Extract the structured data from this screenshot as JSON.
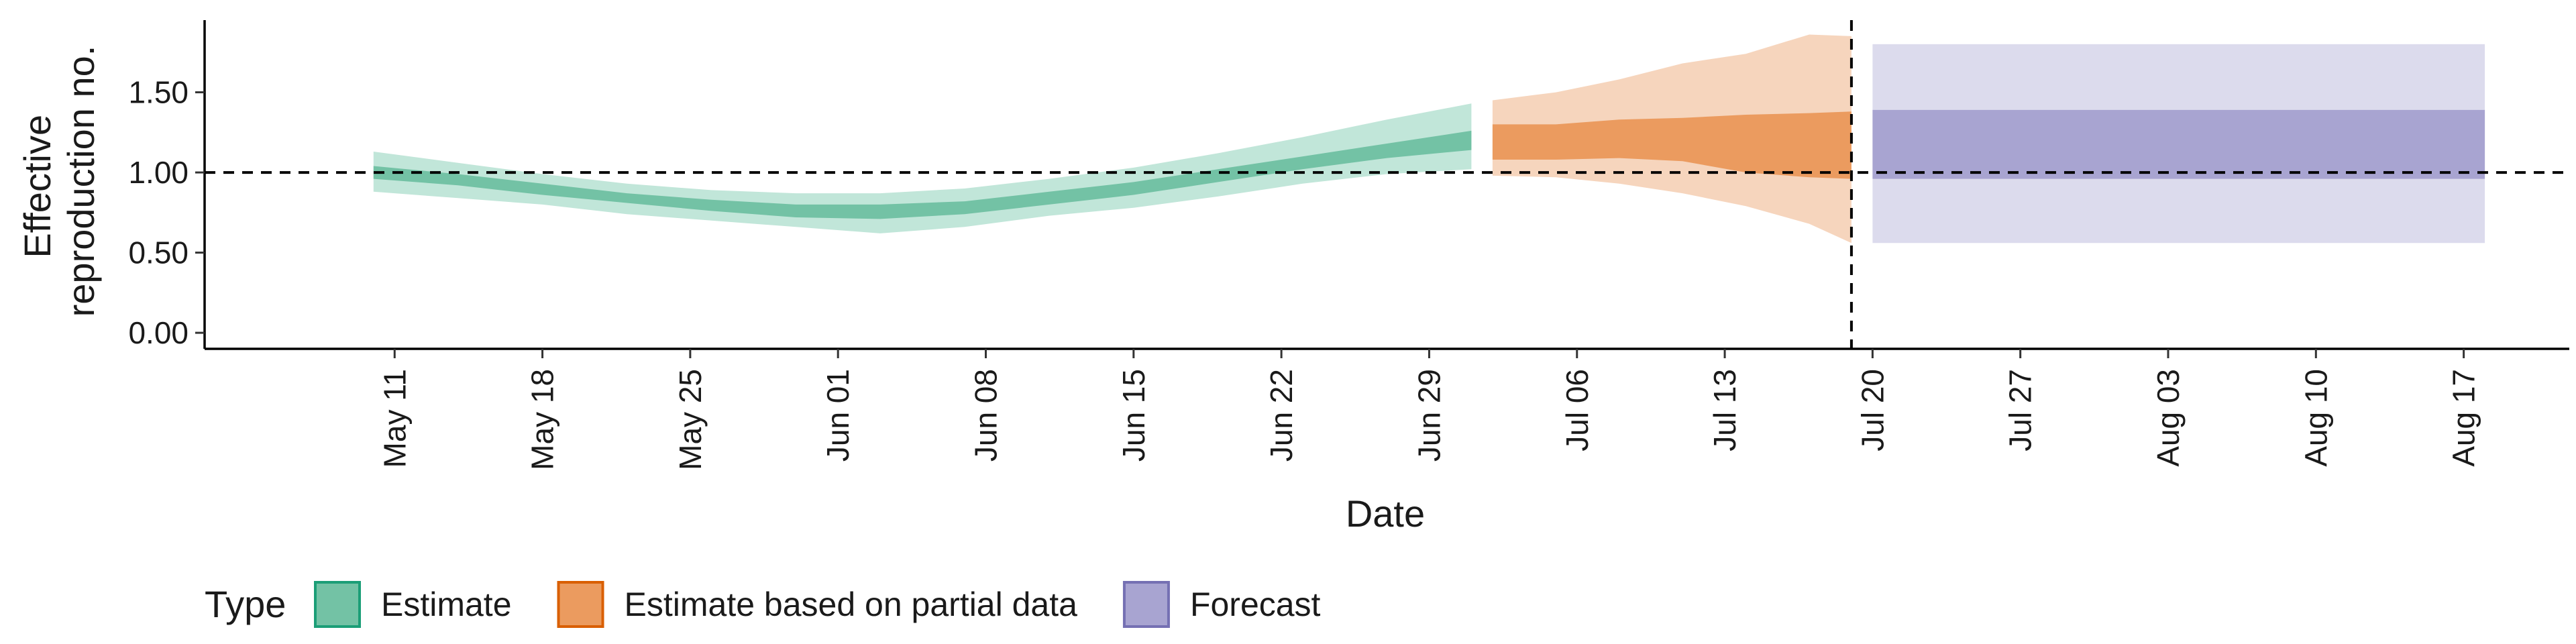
{
  "chart_data": {
    "type": "area",
    "xlabel": "Date",
    "ylabel": [
      "Effective",
      "reproduction no."
    ],
    "x_range": [
      "2021-05-02",
      "2021-08-22"
    ],
    "ylim": [
      -0.1,
      1.95
    ],
    "y_ticks": [
      0.0,
      0.5,
      1.0,
      1.5
    ],
    "y_tick_labels": [
      "0.00",
      "0.50",
      "1.00",
      "1.50"
    ],
    "x_ticks": [
      "2021-05-11",
      "2021-05-18",
      "2021-05-25",
      "2021-06-01",
      "2021-06-08",
      "2021-06-15",
      "2021-06-22",
      "2021-06-29",
      "2021-07-06",
      "2021-07-13",
      "2021-07-20",
      "2021-07-27",
      "2021-08-03",
      "2021-08-10",
      "2021-08-17"
    ],
    "x_tick_labels": [
      "May 11",
      "May 18",
      "May 25",
      "Jun 01",
      "Jun 08",
      "Jun 15",
      "Jun 22",
      "Jun 29",
      "Jul 06",
      "Jul 13",
      "Jul 20",
      "Jul 27",
      "Aug 03",
      "Aug 10",
      "Aug 17"
    ],
    "reference_line_y": 1.0,
    "forecast_start_line": "2021-07-19",
    "grid": false,
    "legend": {
      "title": "Type",
      "position": "bottom-left",
      "items": [
        {
          "label": "Estimate",
          "fill": "#73c2a5",
          "border": "#1b9e77"
        },
        {
          "label": "Estimate based on partial data",
          "fill": "#eb9b5f",
          "border": "#d95f02"
        },
        {
          "label": "Forecast",
          "fill": "#a8a4d1",
          "border": "#7570b3"
        }
      ]
    },
    "series": [
      {
        "name": "Estimate",
        "color_outer": "#c1e6d9",
        "color_inner": "#73c2a5",
        "points": [
          {
            "date": "2021-05-10",
            "lower_90": 0.88,
            "lower_50": 0.96,
            "upper_50": 1.04,
            "upper_90": 1.13
          },
          {
            "date": "2021-05-14",
            "lower_90": 0.84,
            "lower_50": 0.92,
            "upper_50": 0.99,
            "upper_90": 1.06
          },
          {
            "date": "2021-05-18",
            "lower_90": 0.8,
            "lower_50": 0.86,
            "upper_50": 0.93,
            "upper_90": 0.99
          },
          {
            "date": "2021-05-22",
            "lower_90": 0.74,
            "lower_50": 0.81,
            "upper_50": 0.87,
            "upper_90": 0.93
          },
          {
            "date": "2021-05-26",
            "lower_90": 0.7,
            "lower_50": 0.76,
            "upper_50": 0.83,
            "upper_90": 0.89
          },
          {
            "date": "2021-05-30",
            "lower_90": 0.66,
            "lower_50": 0.72,
            "upper_50": 0.8,
            "upper_90": 0.87
          },
          {
            "date": "2021-06-03",
            "lower_90": 0.62,
            "lower_50": 0.71,
            "upper_50": 0.8,
            "upper_90": 0.87
          },
          {
            "date": "2021-06-07",
            "lower_90": 0.66,
            "lower_50": 0.74,
            "upper_50": 0.82,
            "upper_90": 0.9
          },
          {
            "date": "2021-06-11",
            "lower_90": 0.73,
            "lower_50": 0.8,
            "upper_50": 0.88,
            "upper_90": 0.96
          },
          {
            "date": "2021-06-15",
            "lower_90": 0.78,
            "lower_50": 0.86,
            "upper_50": 0.94,
            "upper_90": 1.03
          },
          {
            "date": "2021-06-19",
            "lower_90": 0.85,
            "lower_50": 0.94,
            "upper_50": 1.02,
            "upper_90": 1.12
          },
          {
            "date": "2021-06-23",
            "lower_90": 0.93,
            "lower_50": 1.02,
            "upper_50": 1.1,
            "upper_90": 1.22
          },
          {
            "date": "2021-06-27",
            "lower_90": 0.99,
            "lower_50": 1.09,
            "upper_50": 1.18,
            "upper_90": 1.33
          },
          {
            "date": "2021-07-01",
            "lower_90": 1.02,
            "lower_50": 1.14,
            "upper_50": 1.26,
            "upper_90": 1.43
          }
        ]
      },
      {
        "name": "Estimate based on partial data",
        "color_outer": "#f6d5bd",
        "color_inner": "#eb9b5f",
        "points": [
          {
            "date": "2021-07-02",
            "lower_90": 0.98,
            "lower_50": 1.08,
            "upper_50": 1.3,
            "upper_90": 1.45
          },
          {
            "date": "2021-07-05",
            "lower_90": 0.97,
            "lower_50": 1.08,
            "upper_50": 1.3,
            "upper_90": 1.5
          },
          {
            "date": "2021-07-08",
            "lower_90": 0.93,
            "lower_50": 1.09,
            "upper_50": 1.33,
            "upper_90": 1.58
          },
          {
            "date": "2021-07-11",
            "lower_90": 0.87,
            "lower_50": 1.07,
            "upper_50": 1.34,
            "upper_90": 1.68
          },
          {
            "date": "2021-07-14",
            "lower_90": 0.79,
            "lower_50": 1.0,
            "upper_50": 1.36,
            "upper_90": 1.74
          },
          {
            "date": "2021-07-17",
            "lower_90": 0.68,
            "lower_50": 0.97,
            "upper_50": 1.37,
            "upper_90": 1.86
          },
          {
            "date": "2021-07-19",
            "lower_90": 0.56,
            "lower_50": 0.96,
            "upper_50": 1.38,
            "upper_90": 1.85
          }
        ]
      },
      {
        "name": "Forecast",
        "color_outer": "#dcdbed",
        "color_inner": "#a8a4d1",
        "points": [
          {
            "date": "2021-07-20",
            "lower_90": 0.56,
            "lower_50": 0.96,
            "upper_50": 1.39,
            "upper_90": 1.8
          },
          {
            "date": "2021-08-18",
            "lower_90": 0.56,
            "lower_50": 0.96,
            "upper_50": 1.39,
            "upper_90": 1.8
          }
        ]
      }
    ]
  }
}
